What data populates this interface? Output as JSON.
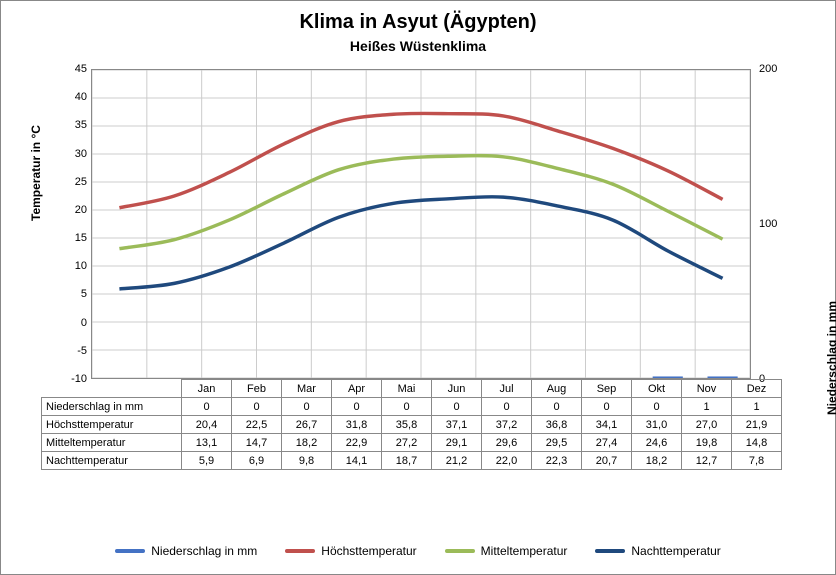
{
  "title": "Klima in Asyut (Ägypten)",
  "subtitle": "Heißes Wüstenklima",
  "months": [
    "Jan",
    "Feb",
    "Mar",
    "Apr",
    "Mai",
    "Jun",
    "Jul",
    "Aug",
    "Sep",
    "Okt",
    "Nov",
    "Dez"
  ],
  "rows": [
    {
      "label": "Niederschlag in mm",
      "values": [
        "0",
        "0",
        "0",
        "0",
        "0",
        "0",
        "0",
        "0",
        "0",
        "0",
        "1",
        "1"
      ]
    },
    {
      "label": "Höchsttemperatur",
      "values": [
        "20,4",
        "22,5",
        "26,7",
        "31,8",
        "35,8",
        "37,1",
        "37,2",
        "36,8",
        "34,1",
        "31,0",
        "27,0",
        "21,9"
      ]
    },
    {
      "label": "Mitteltemperatur",
      "values": [
        "13,1",
        "14,7",
        "18,2",
        "22,9",
        "27,2",
        "29,1",
        "29,6",
        "29,5",
        "27,4",
        "24,6",
        "19,8",
        "14,8"
      ]
    },
    {
      "label": "Nachttemperatur",
      "values": [
        "5,9",
        "6,9",
        "9,8",
        "14,1",
        "18,7",
        "21,2",
        "22,0",
        "22,3",
        "20,7",
        "18,2",
        "12,7",
        "7,8"
      ]
    }
  ],
  "chart": {
    "type": "line-bar-combo",
    "background": "#ffffff",
    "grid_color": "#cccccc",
    "border_color": "#888888",
    "left_axis": {
      "label": "Temperatur in °C",
      "min": -10,
      "max": 45,
      "step": 5
    },
    "right_axis": {
      "label": "Niederschlag in mm",
      "ticks": [
        0,
        100,
        200
      ]
    },
    "series": [
      {
        "name": "Niederschlag in mm",
        "type": "bar",
        "color": "#4472c4",
        "axis": "right",
        "data": [
          0,
          0,
          0,
          0,
          0,
          0,
          0,
          0,
          0,
          0,
          1,
          1
        ]
      },
      {
        "name": "Höchsttemperatur",
        "type": "line",
        "color": "#c0504d",
        "axis": "left",
        "data": [
          20.4,
          22.5,
          26.7,
          31.8,
          35.8,
          37.1,
          37.2,
          36.8,
          34.1,
          31.0,
          27.0,
          21.9
        ]
      },
      {
        "name": "Mitteltemperatur",
        "type": "line",
        "color": "#9bbb59",
        "axis": "left",
        "data": [
          13.1,
          14.7,
          18.2,
          22.9,
          27.2,
          29.1,
          29.6,
          29.5,
          27.4,
          24.6,
          19.8,
          14.8
        ]
      },
      {
        "name": "Nachttemperatur",
        "type": "line",
        "color": "#1f497d",
        "axis": "left",
        "data": [
          5.9,
          6.9,
          9.8,
          14.1,
          18.7,
          21.2,
          22.0,
          22.3,
          20.7,
          18.2,
          12.7,
          7.8
        ]
      }
    ],
    "line_width": 3.5,
    "title_fontsize": 20,
    "subtitle_fontsize": 14,
    "tick_fontsize": 11
  },
  "legend_labels": {
    "precip": "Niederschlag in mm",
    "high": "Höchsttemperatur",
    "mean": "Mitteltemperatur",
    "low": "Nachttemperatur"
  }
}
